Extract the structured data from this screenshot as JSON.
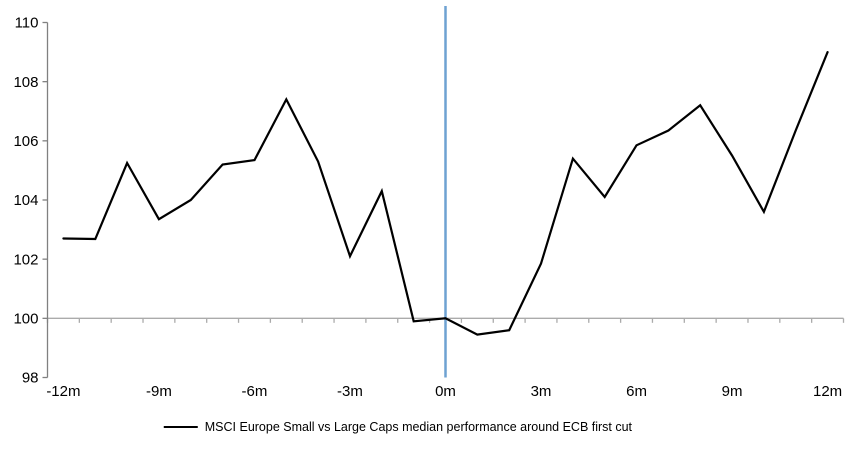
{
  "chart_data": {
    "type": "line",
    "title": "",
    "xlabel": "",
    "ylabel": "",
    "x": [
      -12,
      -11,
      -10,
      -9,
      -8,
      -7,
      -6,
      -5,
      -4,
      -3,
      -2,
      -1,
      0,
      1,
      2,
      3,
      4,
      5,
      6,
      7,
      8,
      9,
      10,
      11,
      12
    ],
    "series": [
      {
        "name": "MSCI Europe Small vs Large Caps median performance around ECB first cut",
        "color": "#000000",
        "values": [
          102.7,
          102.68,
          105.25,
          103.35,
          104.0,
          105.2,
          105.35,
          107.4,
          105.3,
          102.1,
          104.3,
          99.9,
          100.0,
          99.45,
          99.6,
          101.85,
          105.4,
          104.1,
          105.85,
          106.35,
          107.2,
          105.5,
          103.6,
          106.35,
          109.0
        ]
      }
    ],
    "x_ticks": [
      {
        "value": -12,
        "label": "-12m"
      },
      {
        "value": -9,
        "label": "-9m"
      },
      {
        "value": -6,
        "label": "-6m"
      },
      {
        "value": -3,
        "label": "-3m"
      },
      {
        "value": 0,
        "label": "0m"
      },
      {
        "value": 3,
        "label": "3m"
      },
      {
        "value": 6,
        "label": "6m"
      },
      {
        "value": 9,
        "label": "9m"
      },
      {
        "value": 12,
        "label": "12m"
      }
    ],
    "y_ticks": [
      {
        "value": 98,
        "label": "98"
      },
      {
        "value": 100,
        "label": "100"
      },
      {
        "value": 102,
        "label": "102"
      },
      {
        "value": 104,
        "label": "104"
      },
      {
        "value": 106,
        "label": "106"
      },
      {
        "value": 108,
        "label": "108"
      },
      {
        "value": 110,
        "label": "110"
      }
    ],
    "xlim": [
      -12.5,
      12.5
    ],
    "ylim": [
      98,
      110
    ],
    "grid": false,
    "baseline_value": 100,
    "event_line_x": 0,
    "colors": {
      "series": "#000000",
      "event_line": "#6EA2D2",
      "baseline": "#ABABAB",
      "axis": "#808080",
      "text": "#000000"
    },
    "legend": {
      "label": "MSCI Europe Small vs Large Caps median performance around ECB first cut",
      "position": "bottom-center"
    }
  }
}
